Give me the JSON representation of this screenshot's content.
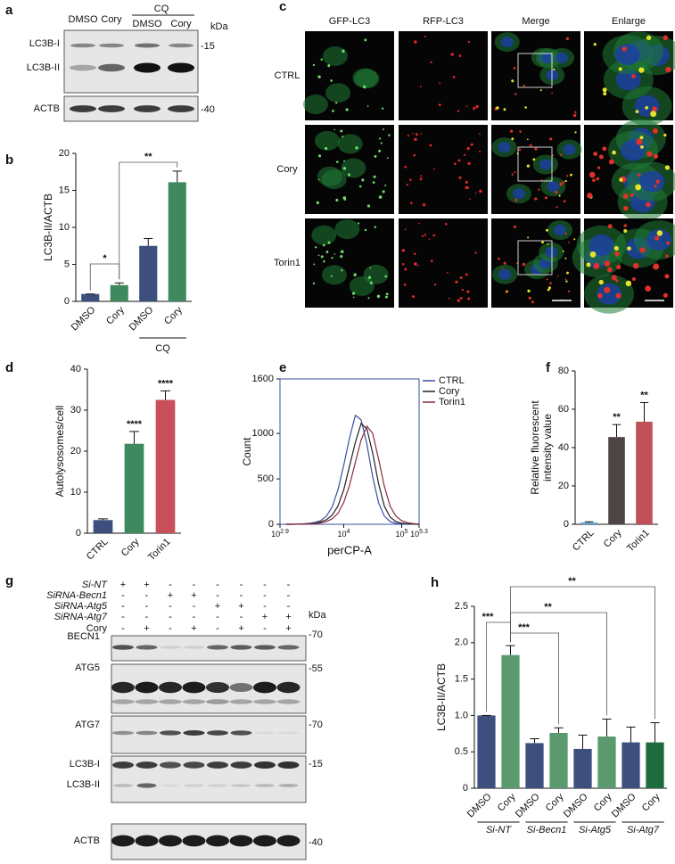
{
  "panel_labels": [
    "a",
    "b",
    "c",
    "d",
    "e",
    "f",
    "g",
    "h"
  ],
  "blot_a": {
    "lanes": [
      "DMSO",
      "Cory",
      "DMSO",
      "Cory"
    ],
    "group": "CQ",
    "kda": "kDa",
    "rows": [
      {
        "label": "LC3B-I",
        "kda": "-15"
      },
      {
        "label": "LC3B-II"
      },
      {
        "label": "ACTB",
        "kda": "-40"
      }
    ]
  },
  "images_c": {
    "columns": [
      "GFP-LC3",
      "RFP-LC3",
      "Merge",
      "Enlarge"
    ],
    "rows": [
      "CTRL",
      "Cory",
      "Torin1"
    ]
  },
  "blot_g": {
    "kda": "kDa",
    "conditions": [
      {
        "label": "Si-NT",
        "signs": [
          "+",
          "+",
          "-",
          "-",
          "-",
          "-",
          "-",
          "-"
        ]
      },
      {
        "label": "SiRNA-Becn1",
        "signs": [
          "-",
          "-",
          "+",
          "+",
          "-",
          "-",
          "-",
          "-"
        ]
      },
      {
        "label": "SiRNA-Atg5",
        "signs": [
          "-",
          "-",
          "-",
          "-",
          "+",
          "+",
          "-",
          "-"
        ]
      },
      {
        "label": "SiRNA-Atg7",
        "signs": [
          "-",
          "-",
          "-",
          "-",
          "-",
          "-",
          "+",
          "+"
        ]
      },
      {
        "label": "Cory",
        "signs": [
          "-",
          "+",
          "-",
          "+",
          "-",
          "+",
          "-",
          "+"
        ]
      }
    ],
    "rows": [
      {
        "label": "BECN1",
        "kda": "-70"
      },
      {
        "label": "ATG5",
        "kda": "-55"
      },
      {
        "label": "ATG7",
        "kda": "-70"
      },
      {
        "label": "LC3B-I",
        "kda": "-15"
      },
      {
        "label": "LC3B-II"
      },
      {
        "label": "ACTB",
        "kda": "-40"
      }
    ]
  },
  "chart_data": [
    {
      "type": "bar",
      "ylabel": "LC3B-II/ACTB",
      "categories": [
        "DMSO",
        "Cory",
        "DMSO",
        "Cory"
      ],
      "values": [
        1,
        2.2,
        7.5,
        16.1
      ],
      "errors": [
        0,
        0.3,
        1.0,
        1.5
      ],
      "colors": [
        "#3d4f7c",
        "#3e8a5e",
        "#3d4f7c",
        "#3e8a5e"
      ],
      "ylim": [
        0,
        20
      ],
      "yticks": [
        0,
        5,
        10,
        15,
        20
      ],
      "group_label": "CQ",
      "annotations": [
        "*",
        "**"
      ]
    },
    {
      "type": "bar",
      "ylabel": "Autolysosomes/cell",
      "categories": [
        "CTRL",
        "Cory",
        "Torin1"
      ],
      "values": [
        3.2,
        21.8,
        32.5
      ],
      "errors": [
        0.3,
        3.0,
        2.2
      ],
      "colors": [
        "#3d4f7c",
        "#3e8a5e",
        "#c94f5a"
      ],
      "ylim": [
        0,
        40
      ],
      "yticks": [
        0,
        10,
        20,
        30,
        40
      ],
      "significance": [
        null,
        "****",
        "****"
      ]
    },
    {
      "type": "line",
      "ylabel": "Count",
      "xlabel": "perCP-A",
      "xscale": "log",
      "x": [
        1000,
        1259,
        1585,
        1995,
        2512,
        3162,
        3981,
        5012,
        6310,
        7943,
        10000,
        12589,
        15849,
        19953,
        25119,
        31623,
        39811,
        50119,
        63096,
        79433,
        100000,
        125893,
        158489,
        199526
      ],
      "series": [
        {
          "name": "CTRL",
          "color": "#3a4fa0",
          "values": [
            0,
            0,
            2,
            5,
            10,
            20,
            40,
            90,
            190,
            380,
            650,
            950,
            1200,
            1150,
            880,
            520,
            240,
            90,
            30,
            10,
            4,
            2,
            1,
            0
          ]
        },
        {
          "name": "Cory",
          "color": "#222222",
          "values": [
            0,
            0,
            1,
            3,
            6,
            12,
            25,
            50,
            100,
            200,
            380,
            640,
            900,
            1110,
            1050,
            780,
            450,
            200,
            80,
            30,
            12,
            5,
            2,
            0
          ]
        },
        {
          "name": "Torin1",
          "color": "#8b2b3a",
          "values": [
            0,
            0,
            1,
            2,
            4,
            8,
            15,
            30,
            60,
            120,
            240,
            430,
            680,
            930,
            1080,
            1000,
            720,
            420,
            200,
            90,
            40,
            18,
            8,
            2
          ]
        }
      ],
      "xlim": [
        794.33,
        199526
      ],
      "xticks": [
        {
          "value": 794.33,
          "label": "102.9"
        },
        {
          "value": 10000,
          "label": "104"
        },
        {
          "value": 100000,
          "label": "105"
        },
        {
          "value": 199526,
          "label": "105.3"
        }
      ],
      "ylim": [
        0,
        1600
      ],
      "yticks": [
        0,
        500,
        1000,
        1600
      ],
      "legend": "upper right"
    },
    {
      "type": "bar",
      "ylabel": [
        "Relative fluorescent",
        "intensity value"
      ],
      "categories": [
        "CTRL",
        "Cory",
        "Torin1"
      ],
      "values": [
        1,
        45.5,
        53.5
      ],
      "errors": [
        0.3,
        6.5,
        10
      ],
      "colors": [
        "#5fa8d8",
        "#4d4545",
        "#c0505a"
      ],
      "ylim": [
        0,
        80
      ],
      "yticks": [
        0,
        20,
        40,
        60,
        80
      ],
      "significance": [
        null,
        "**",
        "**"
      ]
    },
    {
      "type": "bar",
      "ylabel": "LC3B-II/ACTB",
      "categories": [
        "DMSO",
        "Cory",
        "DMSO",
        "Cory",
        "DMSO",
        "Cory",
        "DMSO",
        "Cory"
      ],
      "values": [
        1.0,
        1.83,
        0.62,
        0.76,
        0.54,
        0.71,
        0.63,
        0.63
      ],
      "errors": [
        0,
        0.13,
        0.06,
        0.07,
        0.19,
        0.24,
        0.21,
        0.27
      ],
      "colors": [
        "#3d4f7c",
        "#5b9a6e",
        "#3d4f7c",
        "#5b9a6e",
        "#3d4f7c",
        "#5b9a6e",
        "#3d4f7c",
        "#1e6b3c"
      ],
      "ylim": [
        0,
        2.5
      ],
      "yticks": [
        0,
        0.5,
        {
          "value": 1,
          "label": "1.0"
        },
        1.5,
        {
          "value": 2,
          "label": "2.0"
        },
        2.5
      ],
      "groups": [
        "Si-NT",
        "Si-Becn1",
        "Si-Atg5",
        "Si-Atg7"
      ],
      "annotations": [
        "***",
        "***",
        "**",
        "**"
      ]
    }
  ]
}
